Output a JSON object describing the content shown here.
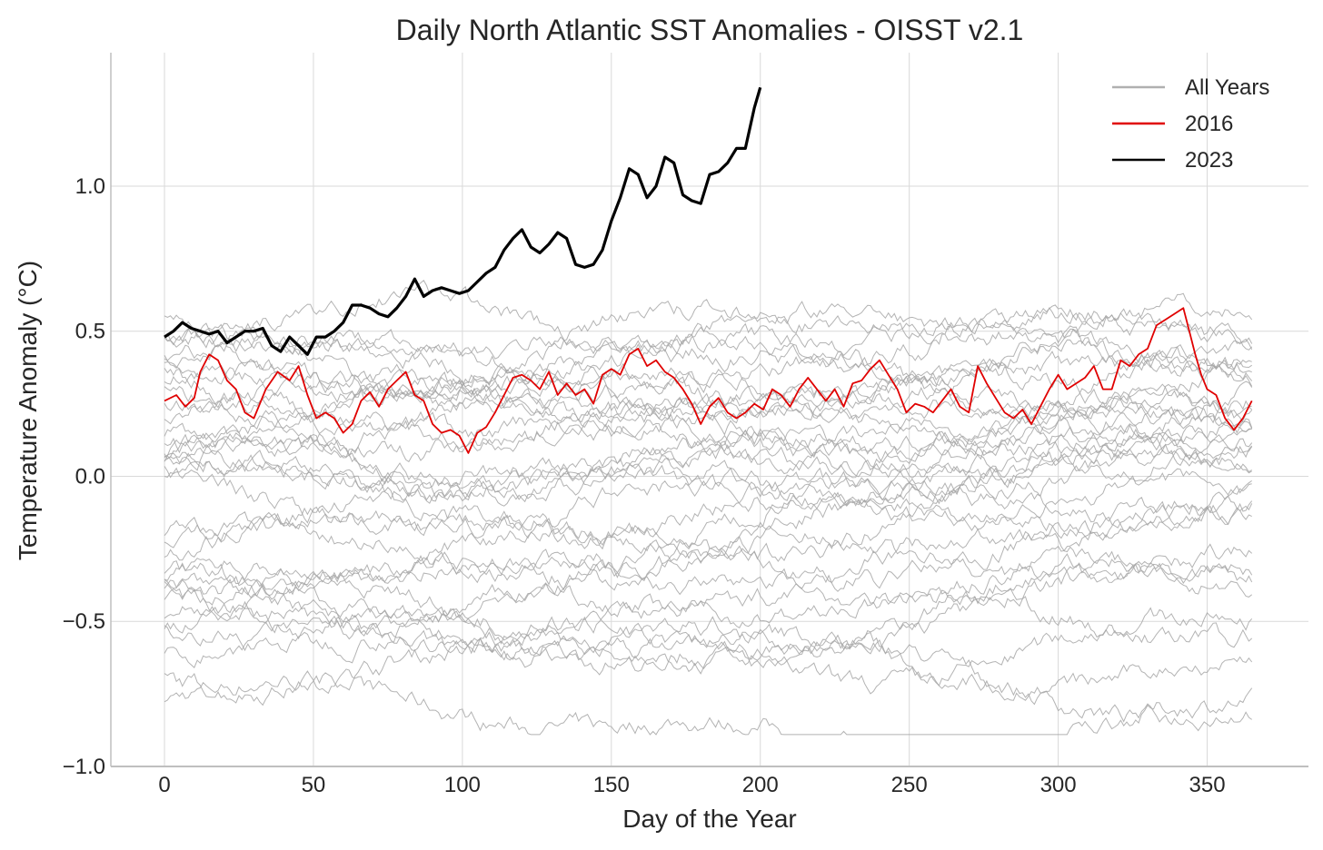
{
  "chart_data": {
    "type": "line",
    "title": "Daily North Atlantic SST Anomalies - OISST v2.1",
    "xlabel": "Day of the Year",
    "ylabel": "Temperature Anomaly (°C)",
    "xlim": [
      -18,
      384
    ],
    "ylim": [
      -1.0,
      1.46
    ],
    "x_ticks": [
      0,
      50,
      100,
      150,
      200,
      250,
      300,
      350
    ],
    "x_tick_labels": [
      "0",
      "50",
      "100",
      "150",
      "200",
      "250",
      "300",
      "350"
    ],
    "y_ticks": [
      -1.0,
      -0.5,
      0.0,
      0.5,
      1.0
    ],
    "y_tick_labels": [
      "−1.0",
      "−0.5",
      "0.0",
      "0.5",
      "1.0"
    ],
    "grid": true,
    "legend_position": "top-right",
    "legend": [
      {
        "label": "All Years",
        "color": "#b0b0b0"
      },
      {
        "label": "2016",
        "color": "#e00000"
      },
      {
        "label": "2023",
        "color": "#000000"
      }
    ],
    "background_years": {
      "color": "#a6a6a6",
      "x_range": [
        0,
        365
      ],
      "approx_start_values": [
        -0.74,
        -0.6,
        -0.55,
        -0.52,
        -0.5,
        -0.48,
        -0.45,
        -0.43,
        -0.4,
        -0.38,
        -0.33,
        -0.3,
        -0.26,
        -0.22,
        -0.18,
        -0.12,
        -0.05,
        0.0,
        0.03,
        0.05,
        0.08,
        0.1,
        0.13,
        0.16,
        0.19,
        0.22,
        0.25,
        0.28,
        0.33,
        0.36,
        0.4,
        0.45,
        0.48,
        0.5,
        0.52,
        0.55
      ],
      "approx_end_values": [
        -0.8,
        -0.75,
        -0.65,
        -0.5,
        -0.47,
        -0.45,
        -0.35,
        -0.3,
        -0.25,
        -0.2,
        -0.15,
        -0.1,
        -0.05,
        0.0,
        0.02,
        0.05,
        0.08,
        0.1,
        0.12,
        0.14,
        0.16,
        0.18,
        0.2,
        0.25,
        0.3,
        0.35,
        0.38,
        0.4,
        0.42,
        0.45,
        0.47,
        0.5,
        0.52,
        0.28,
        0.34,
        0.2
      ]
    },
    "series": [
      {
        "name": "2016",
        "color": "#e00000",
        "x": [
          0,
          4,
          7,
          10,
          12,
          15,
          18,
          21,
          24,
          27,
          30,
          34,
          38,
          42,
          45,
          48,
          51,
          54,
          57,
          60,
          63,
          66,
          69,
          72,
          75,
          78,
          81,
          84,
          87,
          90,
          93,
          96,
          99,
          102,
          105,
          108,
          111,
          114,
          117,
          120,
          123,
          126,
          129,
          132,
          135,
          138,
          141,
          144,
          147,
          150,
          153,
          156,
          159,
          162,
          165,
          168,
          171,
          174,
          177,
          180,
          183,
          186,
          189,
          192,
          195,
          198,
          201,
          204,
          207,
          210,
          213,
          216,
          219,
          222,
          225,
          228,
          231,
          234,
          237,
          240,
          243,
          246,
          249,
          252,
          255,
          258,
          261,
          264,
          267,
          270,
          273,
          276,
          279,
          282,
          285,
          288,
          291,
          294,
          297,
          300,
          303,
          306,
          309,
          312,
          315,
          318,
          321,
          324,
          327,
          330,
          333,
          336,
          339,
          342,
          344,
          346,
          348,
          350,
          353,
          356,
          359,
          362,
          365
        ],
        "values": [
          0.26,
          0.28,
          0.24,
          0.27,
          0.36,
          0.42,
          0.4,
          0.33,
          0.3,
          0.22,
          0.2,
          0.3,
          0.36,
          0.33,
          0.38,
          0.28,
          0.2,
          0.22,
          0.2,
          0.15,
          0.18,
          0.26,
          0.29,
          0.24,
          0.3,
          0.33,
          0.36,
          0.28,
          0.26,
          0.18,
          0.15,
          0.16,
          0.14,
          0.08,
          0.15,
          0.17,
          0.22,
          0.28,
          0.34,
          0.35,
          0.33,
          0.3,
          0.36,
          0.28,
          0.32,
          0.28,
          0.3,
          0.25,
          0.35,
          0.37,
          0.35,
          0.42,
          0.44,
          0.38,
          0.4,
          0.36,
          0.34,
          0.3,
          0.25,
          0.18,
          0.24,
          0.27,
          0.22,
          0.2,
          0.22,
          0.25,
          0.23,
          0.3,
          0.28,
          0.24,
          0.3,
          0.34,
          0.3,
          0.26,
          0.3,
          0.24,
          0.32,
          0.33,
          0.37,
          0.4,
          0.35,
          0.3,
          0.22,
          0.25,
          0.24,
          0.22,
          0.26,
          0.3,
          0.24,
          0.22,
          0.38,
          0.32,
          0.27,
          0.22,
          0.2,
          0.23,
          0.18,
          0.24,
          0.3,
          0.35,
          0.3,
          0.32,
          0.34,
          0.38,
          0.3,
          0.3,
          0.4,
          0.38,
          0.42,
          0.44,
          0.52,
          0.54,
          0.56,
          0.58,
          0.5,
          0.42,
          0.35,
          0.3,
          0.28,
          0.2,
          0.16,
          0.2,
          0.26
        ]
      },
      {
        "name": "2023",
        "color": "#000000",
        "x": [
          0,
          3,
          6,
          9,
          12,
          15,
          18,
          21,
          24,
          27,
          30,
          33,
          36,
          39,
          42,
          45,
          48,
          51,
          54,
          57,
          60,
          63,
          66,
          69,
          72,
          75,
          78,
          81,
          84,
          87,
          90,
          93,
          96,
          99,
          102,
          105,
          108,
          111,
          114,
          117,
          120,
          123,
          126,
          129,
          132,
          135,
          138,
          141,
          144,
          147,
          150,
          153,
          156,
          159,
          162,
          165,
          168,
          171,
          174,
          177,
          180,
          183,
          186,
          189,
          192,
          195,
          198,
          200
        ],
        "values": [
          0.48,
          0.5,
          0.53,
          0.51,
          0.5,
          0.49,
          0.5,
          0.46,
          0.48,
          0.5,
          0.5,
          0.51,
          0.45,
          0.43,
          0.48,
          0.45,
          0.42,
          0.48,
          0.48,
          0.5,
          0.53,
          0.59,
          0.59,
          0.58,
          0.56,
          0.55,
          0.58,
          0.62,
          0.68,
          0.62,
          0.64,
          0.65,
          0.64,
          0.63,
          0.64,
          0.67,
          0.7,
          0.72,
          0.78,
          0.82,
          0.85,
          0.79,
          0.77,
          0.8,
          0.84,
          0.82,
          0.73,
          0.72,
          0.73,
          0.78,
          0.88,
          0.96,
          1.06,
          1.04,
          0.96,
          1.0,
          1.1,
          1.08,
          0.97,
          0.95,
          0.94,
          1.04,
          1.05,
          1.08,
          1.13,
          1.13,
          1.27,
          1.34
        ]
      }
    ]
  }
}
